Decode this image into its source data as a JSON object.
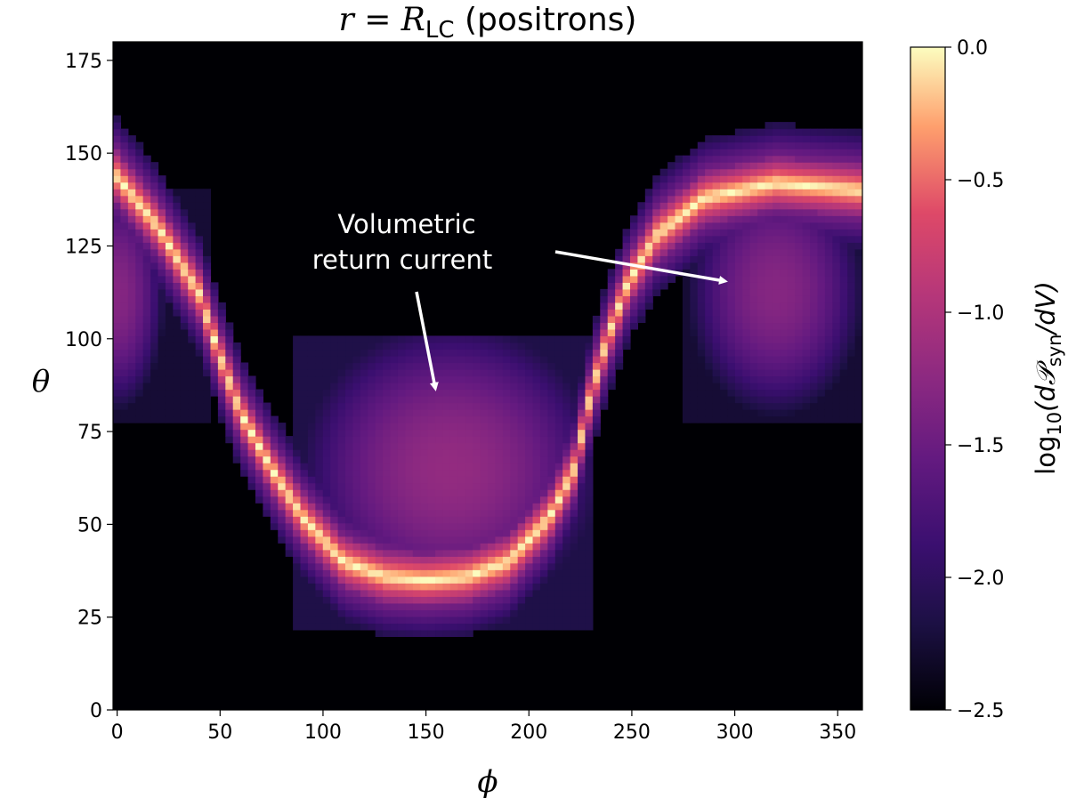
{
  "chart_data": {
    "type": "heatmap",
    "title": {
      "main": "r = R",
      "sub": "LC",
      "suffix": " (positrons)"
    },
    "xlabel": "ϕ",
    "ylabel": "θ",
    "xlim": [
      -2,
      362
    ],
    "ylim": [
      0,
      180
    ],
    "xticks": [
      0,
      50,
      100,
      150,
      200,
      250,
      300,
      350
    ],
    "yticks": [
      0,
      25,
      50,
      75,
      100,
      125,
      150,
      175
    ],
    "colormap": "magma",
    "colorbar": {
      "range": [
        -2.5,
        0.0
      ],
      "ticks": [
        "0.0",
        "−0.5",
        "−1.0",
        "−1.5",
        "−2.0",
        "−2.5"
      ],
      "label": {
        "pre": "log",
        "sub1": "10",
        "mid": "(d𝒫",
        "sub2": "syn",
        "post": "/dV)"
      }
    },
    "features": {
      "current_sheet_peak": 0.0,
      "sheet_glow": -0.45,
      "return_current_blobs": [
        {
          "phi_center": 162,
          "theta_center": 65,
          "phi_range": [
            85,
            230
          ],
          "theta_range": [
            22,
            101
          ],
          "peak_value": -1.2
        },
        {
          "phi_center": 320,
          "theta_center": 113,
          "phi_range": [
            275,
            362
          ],
          "theta_range": [
            77,
            145
          ],
          "peak_value": -1.3
        },
        {
          "phi_center": 0,
          "theta_center": 112,
          "phi_range": [
            -2,
            45
          ],
          "theta_range": [
            77,
            140
          ],
          "peak_value": -1.3
        }
      ],
      "background": -2.5
    },
    "annotations": [
      {
        "lines": [
          "Volumetric",
          "return current"
        ],
        "arrow_targets_data": [
          [
            155,
            85
          ],
          [
            300,
            117
          ]
        ]
      }
    ]
  }
}
